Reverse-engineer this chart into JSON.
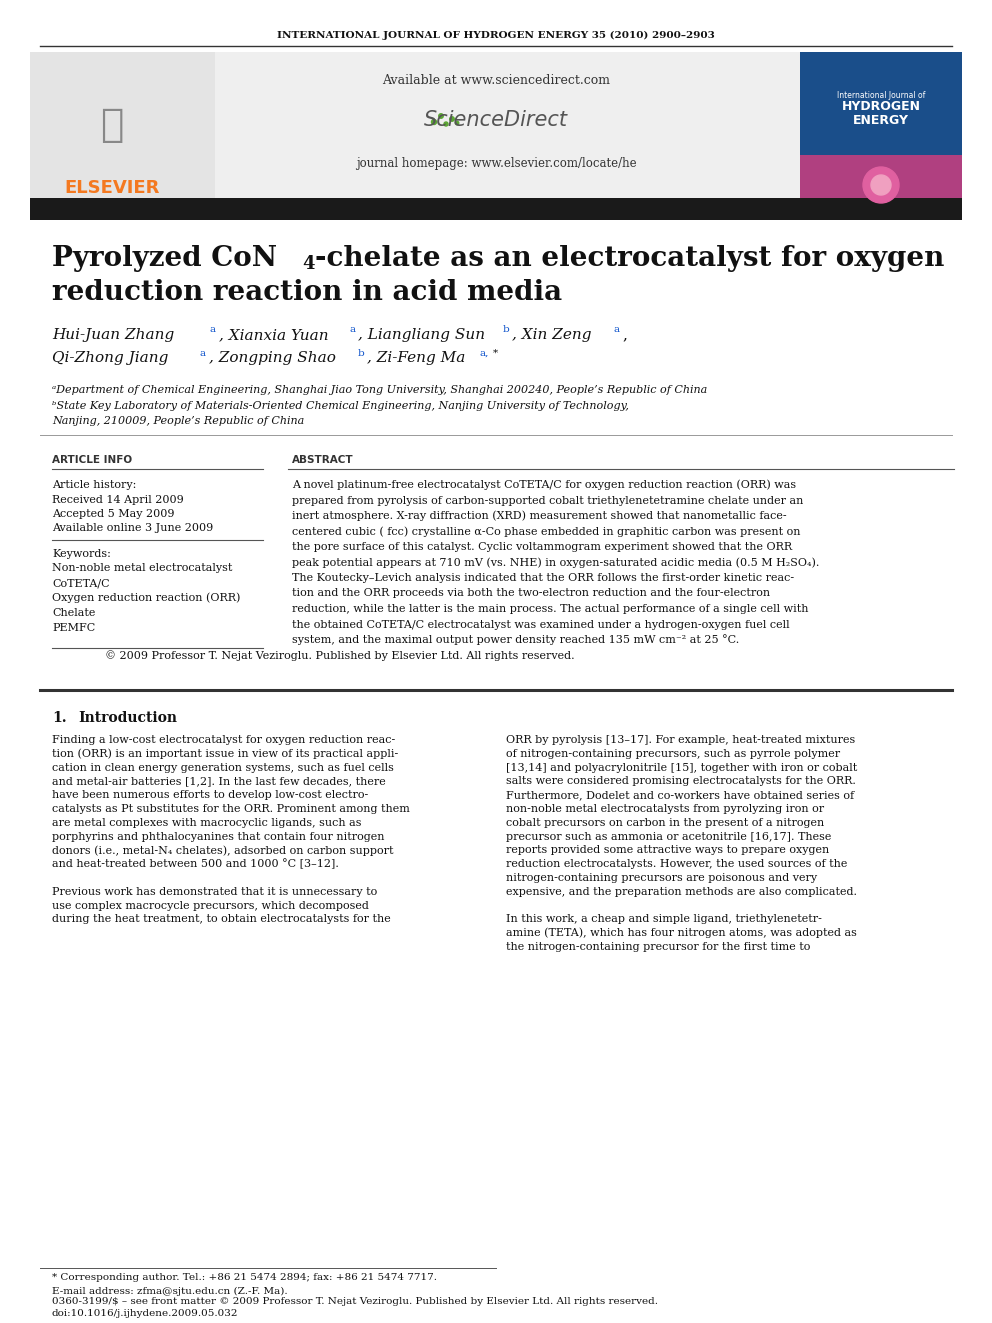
{
  "journal_header": "INTERNATIONAL JOURNAL OF HYDROGEN ENERGY 35 (2010) 2900–2903",
  "available_text": "Available at www.sciencedirect.com",
  "journal_homepage": "journal homepage: www.elsevier.com/locate/he",
  "article_info_header": "ARTICLE INFO",
  "abstract_header": "ABSTRACT",
  "article_history": "Article history:",
  "received": "Received 14 April 2009",
  "accepted": "Accepted 5 May 2009",
  "available_online": "Available online 3 June 2009",
  "keywords_header": "Keywords:",
  "kw1": "Non-noble metal electrocatalyst",
  "kw2": "CoTETA/C",
  "kw3": "Oxygen reduction reaction (ORR)",
  "kw4": "Chelate",
  "kw5": "PEMFC",
  "copyright": "© 2009 Professor T. Nejat Veziroglu. Published by Elsevier Ltd. All rights reserved.",
  "affil_a": "ᵃDepartment of Chemical Engineering, Shanghai Jiao Tong University, Shanghai 200240, People’s Republic of China",
  "affil_b": "ᵇState Key Laboratory of Materials-Oriented Chemical Engineering, Nanjing University of Technology,",
  "affil_b2": "Nanjing, 210009, People’s Republic of China",
  "footnote_star": "* Corresponding author. Tel.: +86 21 5474 2894; fax: +86 21 5474 7717.",
  "footnote_email": "E-mail address: zfma@sjtu.edu.cn (Z.-F. Ma).",
  "footnote_issn": "0360-3199/$ – see front matter © 2009 Professor T. Nejat Veziroglu. Published by Elsevier Ltd. All rights reserved.",
  "footnote_doi": "doi:10.1016/j.ijhydene.2009.05.032",
  "elsevier_color": "#F47920",
  "bg_color": "#FFFFFF",
  "title_bar_color": "#1A1A1A",
  "blue_link": "#1155CC"
}
